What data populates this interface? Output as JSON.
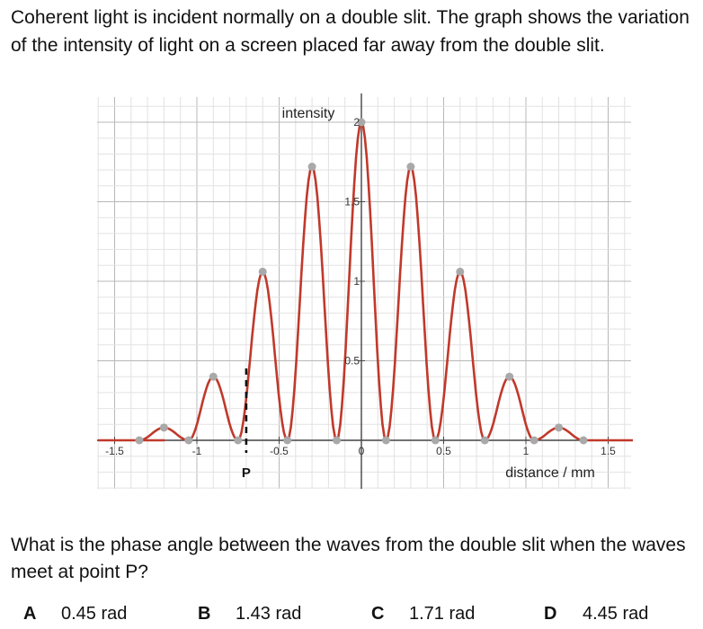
{
  "question": {
    "intro": "Coherent light is incident normally on a double slit. The graph shows the variation of the intensity of light on a screen placed far away from the double slit.",
    "prompt": "What is the phase angle between the waves from the double slit when the waves meet at point P?",
    "options": [
      {
        "letter": "A",
        "text": "0.45 rad"
      },
      {
        "letter": "B",
        "text": "1.43 rad"
      },
      {
        "letter": "C",
        "text": "1.71 rad"
      },
      {
        "letter": "D",
        "text": "4.45 rad"
      }
    ]
  },
  "chart_data": {
    "type": "line",
    "xlabel": "distance / mm",
    "ylabel": "intensity",
    "xlim": [
      -1.6,
      1.65
    ],
    "ylim": [
      -0.3,
      2.1
    ],
    "grid": true,
    "x_ticks": [
      {
        "value": -1.5,
        "label": "-1.5"
      },
      {
        "value": -1,
        "label": "-1"
      },
      {
        "value": -0.5,
        "label": "-0.5"
      },
      {
        "value": 0,
        "label": "0"
      },
      {
        "value": 0.5,
        "label": "0.5"
      },
      {
        "value": 1,
        "label": "1"
      },
      {
        "value": 1.5,
        "label": "1.5"
      }
    ],
    "y_ticks": [
      {
        "value": 0.5,
        "label": "0.5"
      },
      {
        "value": 1,
        "label": "1"
      },
      {
        "value": 1.5,
        "label": "1.5"
      },
      {
        "value": 2,
        "label": "2"
      }
    ],
    "series": [
      {
        "color": "#c0392b",
        "maxima": [
          {
            "x": -1.2,
            "y": 0.08
          },
          {
            "x": -0.9,
            "y": 0.4
          },
          {
            "x": -0.6,
            "y": 1.06
          },
          {
            "x": -0.3,
            "y": 1.72
          },
          {
            "x": 0,
            "y": 2
          },
          {
            "x": 0.3,
            "y": 1.72
          },
          {
            "x": 0.6,
            "y": 1.06
          },
          {
            "x": 0.9,
            "y": 0.4
          },
          {
            "x": 1.2,
            "y": 0.08
          }
        ],
        "minima_x": [
          -1.05,
          -0.75,
          -0.45,
          -0.15,
          0.15,
          0.45,
          0.75,
          1.05,
          1.35
        ]
      }
    ],
    "marker": {
      "label": "P",
      "x": -0.7
    }
  }
}
